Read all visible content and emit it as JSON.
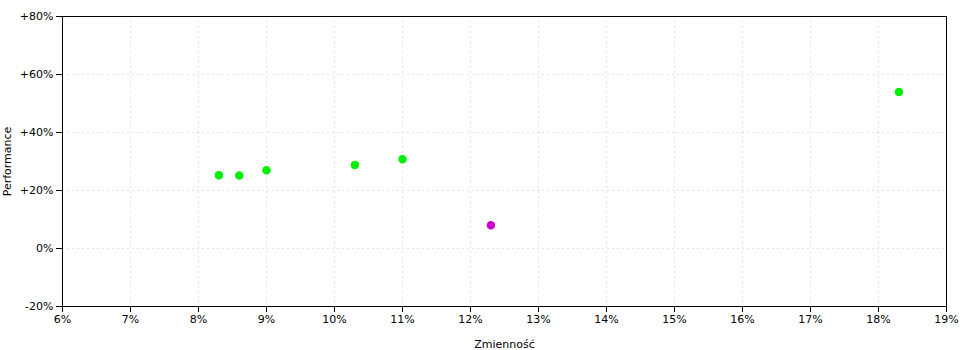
{
  "chart_data": {
    "type": "scatter",
    "xlabel": "Zmienność",
    "ylabel": "Performance",
    "xlim": [
      0.06,
      0.19
    ],
    "ylim": [
      -0.2,
      0.8
    ],
    "xticks": [
      {
        "value": 0.06,
        "label": "6%"
      },
      {
        "value": 0.07,
        "label": "7%"
      },
      {
        "value": 0.08,
        "label": "8%"
      },
      {
        "value": 0.09,
        "label": "9%"
      },
      {
        "value": 0.1,
        "label": "10%"
      },
      {
        "value": 0.11,
        "label": "11%"
      },
      {
        "value": 0.12,
        "label": "12%"
      },
      {
        "value": 0.13,
        "label": "13%"
      },
      {
        "value": 0.14,
        "label": "14%"
      },
      {
        "value": 0.15,
        "label": "15%"
      },
      {
        "value": 0.16,
        "label": "16%"
      },
      {
        "value": 0.17,
        "label": "17%"
      },
      {
        "value": 0.18,
        "label": "18%"
      },
      {
        "value": 0.19,
        "label": "19%"
      }
    ],
    "yticks": [
      {
        "value": -0.2,
        "label": "-20%"
      },
      {
        "value": 0.0,
        "label": "0%"
      },
      {
        "value": 0.2,
        "label": "+20%"
      },
      {
        "value": 0.4,
        "label": "+40%"
      },
      {
        "value": 0.6,
        "label": "+60%"
      },
      {
        "value": 0.8,
        "label": "+80%"
      }
    ],
    "grid": true,
    "series": [
      {
        "color": "#00ee00",
        "marker": "circle",
        "x": [
          0.083,
          0.086,
          0.09,
          0.103,
          0.11,
          0.183
        ],
        "values": [
          0.253,
          0.252,
          0.27,
          0.288,
          0.308,
          0.54
        ]
      },
      {
        "color": "#cc00cc",
        "marker": "circle",
        "x": [
          0.123
        ],
        "values": [
          0.08
        ]
      }
    ]
  }
}
